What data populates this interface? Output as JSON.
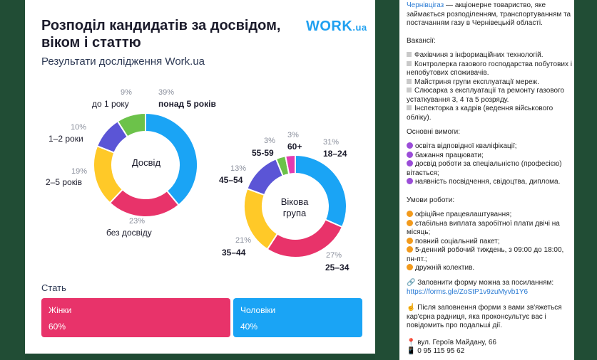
{
  "infographic": {
    "title": "Розподіл кандидатів за досвідом, віком і статтю",
    "subtitle": "Результати дослідження Work.ua",
    "logo_main": "WORK",
    "logo_tld": ".ua",
    "experience": {
      "center_label": "Досвід",
      "segments": [
        {
          "label": "понад 5 років",
          "pct": "39%",
          "value": 39,
          "color": "#1aa4f5"
        },
        {
          "label": "без досвіду",
          "pct": "23%",
          "value": 23,
          "color": "#e8336a"
        },
        {
          "label": "2–5 років",
          "pct": "19%",
          "value": 19,
          "color": "#ffc928"
        },
        {
          "label": "1–2 роки",
          "pct": "10%",
          "value": 10,
          "color": "#5b55d6"
        },
        {
          "label": "до 1 року",
          "pct": "9%",
          "value": 9,
          "color": "#6cc24a"
        }
      ]
    },
    "age": {
      "center_label_line1": "Вікова",
      "center_label_line2": "група",
      "segments": [
        {
          "label": "18–24",
          "pct": "31%",
          "value": 31,
          "color": "#1aa4f5"
        },
        {
          "label": "25–34",
          "pct": "27%",
          "value": 27,
          "color": "#e8336a"
        },
        {
          "label": "35–44",
          "pct": "21%",
          "value": 21,
          "color": "#ffc928"
        },
        {
          "label": "45–54",
          "pct": "13%",
          "value": 13,
          "color": "#5b55d6"
        },
        {
          "label": "55-59",
          "pct": "3%",
          "value": 3,
          "color": "#6cc24a"
        },
        {
          "label": "60+",
          "pct": "3%",
          "value": 3,
          "color": "#e33bb0"
        }
      ]
    },
    "sex": {
      "title": "Стать",
      "women_label": "Жінки",
      "women_pct": "60%",
      "women_value": 60,
      "men_label": "Чоловіки",
      "men_pct": "40%",
      "men_value": 40
    }
  },
  "post": {
    "intro_link": "Чернівцігаз",
    "intro_text": " — акціонерне товариство, яке займається розподіленням, транспортуванням та постачанням газу в Чернівецькій області.",
    "vacancies_title": "Вакансії:",
    "vacancies": [
      "Фахівчиня з інформаційних технологій.",
      "Контролерка газового господарства побутових і непобутових споживачів.",
      "Майстриня групи експлуатації мереж.",
      "Слюсарка з експлуатації та ремонту газового устаткування 3, 4 та 5 розряду.",
      "Інспекторка з кадрів (ведення військового обліку)."
    ],
    "requirements_title": "Основні вимоги:",
    "requirements": [
      "освіта відповідної кваліфікації;",
      "бажання працювати;",
      "досвід роботи за спеціальністю (професією) вітається;",
      "наявність посвідчення, свідоцтва, диплома."
    ],
    "conditions_title": "Умови роботи:",
    "conditions": [
      "офіційне працевлаштування;",
      "стабільна виплата заробітної плати двічі на місяць;",
      "повний соціальний пакет;",
      "5-денний робочий тиждень, з 09:00 до 18:00, пн-пт.;",
      "дружній колектив."
    ],
    "form_text": "🔗 Заповнити форму можна за посиланням:",
    "form_link": "https://forms.gle/ZoStP1v9zuMyvb1Y6",
    "after_text": "☝ Після заповнення форми з вами зв'яжеться кар'єрна радниця, яка проконсультує вас і повідомить про подальші дії.",
    "address": "📍 вул. Героїв Майдану, 66",
    "phone": "📱 0 95 115 95 62",
    "colors": {
      "purple": "#9b4dd8",
      "orange": "#f29a1c",
      "link": "#2a7bd4"
    }
  }
}
